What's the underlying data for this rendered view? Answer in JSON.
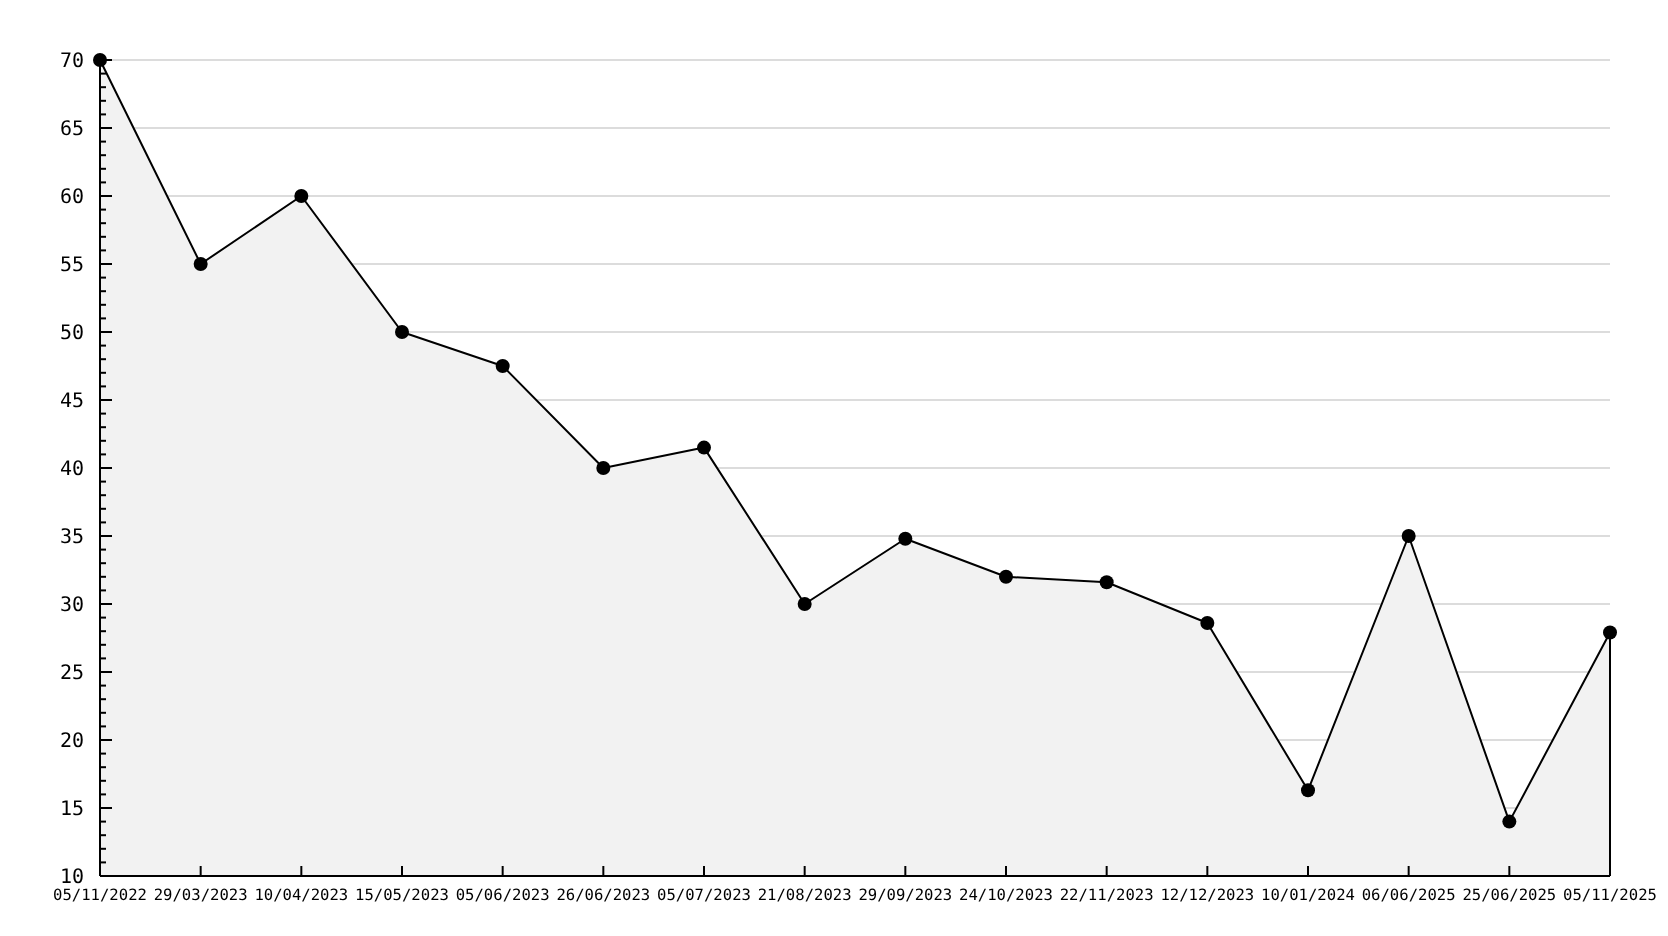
{
  "chart_data": {
    "type": "area",
    "categories": [
      "05/11/2022",
      "29/03/2023",
      "10/04/2023",
      "15/05/2023",
      "05/06/2023",
      "26/06/2023",
      "05/07/2023",
      "21/08/2023",
      "29/09/2023",
      "24/10/2023",
      "22/11/2023",
      "12/12/2023",
      "10/01/2024",
      "06/06/2025",
      "25/06/2025",
      "05/11/2025"
    ],
    "series": [
      {
        "color": "#000000",
        "values": [
          70,
          55,
          60,
          50,
          47.5,
          40,
          41.5,
          30,
          34.8,
          32,
          31.6,
          28.6,
          16.3,
          35,
          14,
          27.9
        ]
      }
    ],
    "ylim": [
      10,
      70
    ],
    "yticks": [
      10,
      15,
      20,
      25,
      30,
      35,
      40,
      45,
      50,
      55,
      60,
      65,
      70
    ],
    "grid": "y",
    "marker": "circle",
    "line_style": "solid"
  }
}
